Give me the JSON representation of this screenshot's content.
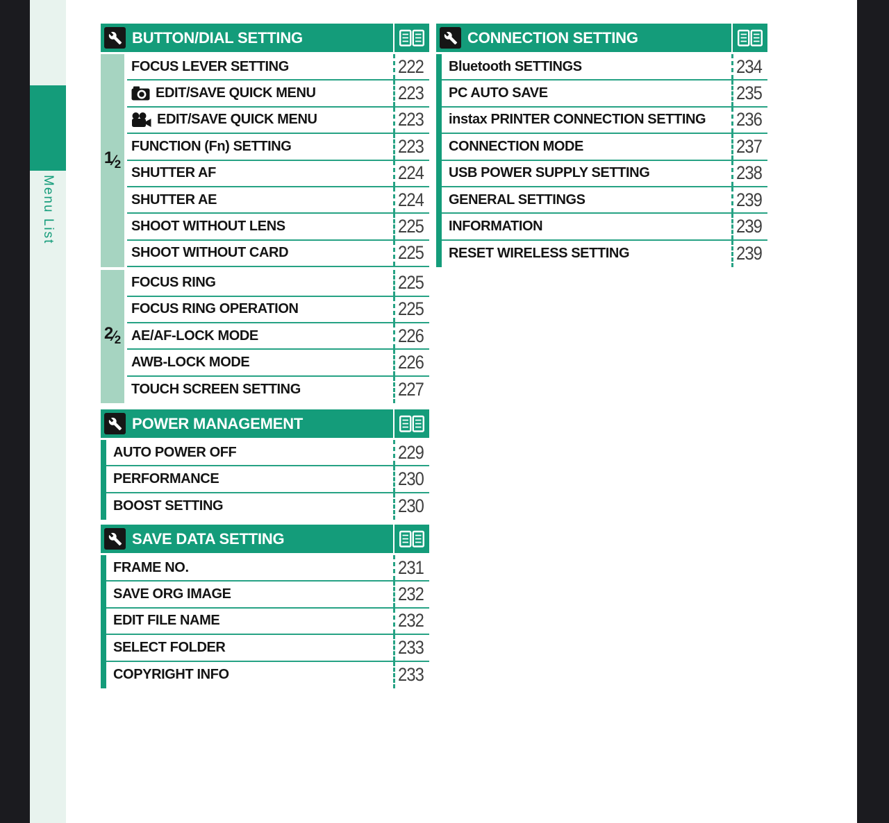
{
  "sidebar": {
    "label": "Menu List"
  },
  "colors": {
    "header_green": "#149c7a",
    "line_green": "#26a284",
    "gutter_green": "#a6d4c1",
    "sidebar_pale": "#e8f3ee",
    "side_strip_black": "#1b1b1f"
  },
  "tables": [
    {
      "id": "button-dial",
      "title": "BUTTON/DIAL SETTING",
      "header_icon": "wrench-icon",
      "reference_icon": "book-icon",
      "groups": [
        {
          "fraction": {
            "numerator": "1",
            "slash": "⁄",
            "denominator": "2"
          },
          "rows": [
            {
              "label": "FOCUS LEVER SETTING",
              "page": "222"
            },
            {
              "label": "EDIT/SAVE QUICK MENU",
              "icon": "still-camera-icon",
              "page": "223"
            },
            {
              "label": "EDIT/SAVE QUICK MENU",
              "icon": "movie-camera-icon",
              "page": "223"
            },
            {
              "label": "FUNCTION (Fn) SETTING",
              "page": "223"
            },
            {
              "label": "SHUTTER AF",
              "page": "224"
            },
            {
              "label": "SHUTTER AE",
              "page": "224"
            },
            {
              "label": "SHOOT WITHOUT LENS",
              "page": "225"
            },
            {
              "label": "SHOOT WITHOUT CARD",
              "page": "225"
            }
          ]
        },
        {
          "fraction": {
            "numerator": "2",
            "slash": "⁄",
            "denominator": "2"
          },
          "rows": [
            {
              "label": "FOCUS RING",
              "page": "225"
            },
            {
              "label": "FOCUS RING OPERATION",
              "page": "225"
            },
            {
              "label": "AE/AF-LOCK MODE",
              "page": "226"
            },
            {
              "label": "AWB-LOCK MODE",
              "page": "226"
            },
            {
              "label": "TOUCH SCREEN SETTING",
              "page": "227"
            }
          ]
        }
      ]
    },
    {
      "id": "power",
      "title": "POWER MANAGEMENT",
      "header_icon": "wrench-icon",
      "reference_icon": "book-icon",
      "groups": [
        {
          "fraction": null,
          "rows": [
            {
              "label": "AUTO POWER OFF",
              "page": "229"
            },
            {
              "label": "PERFORMANCE",
              "page": "230"
            },
            {
              "label": "BOOST SETTING",
              "page": "230"
            }
          ]
        }
      ]
    },
    {
      "id": "save",
      "title": "SAVE DATA SETTING",
      "header_icon": "wrench-icon",
      "reference_icon": "book-icon",
      "groups": [
        {
          "fraction": null,
          "rows": [
            {
              "label": "FRAME NO.",
              "page": "231"
            },
            {
              "label": "SAVE ORG IMAGE",
              "page": "232"
            },
            {
              "label": "EDIT FILE NAME",
              "page": "232"
            },
            {
              "label": "SELECT FOLDER",
              "page": "233"
            },
            {
              "label": "COPYRIGHT INFO",
              "page": "233"
            }
          ]
        }
      ]
    },
    {
      "id": "connection",
      "title": "CONNECTION SETTING",
      "header_icon": "wrench-icon",
      "reference_icon": "book-icon",
      "groups": [
        {
          "fraction": null,
          "rows": [
            {
              "label": "Bluetooth SETTINGS",
              "page": "234"
            },
            {
              "label": "PC AUTO SAVE",
              "page": "235"
            },
            {
              "label": "instax PRINTER CONNECTION SETTING",
              "page": "236"
            },
            {
              "label": "CONNECTION MODE",
              "page": "237"
            },
            {
              "label": "USB POWER SUPPLY SETTING",
              "page": "238"
            },
            {
              "label": "GENERAL SETTINGS",
              "page": "239"
            },
            {
              "label": "INFORMATION",
              "page": "239"
            },
            {
              "label": "RESET WIRELESS SETTING",
              "page": "239"
            }
          ]
        }
      ]
    }
  ]
}
